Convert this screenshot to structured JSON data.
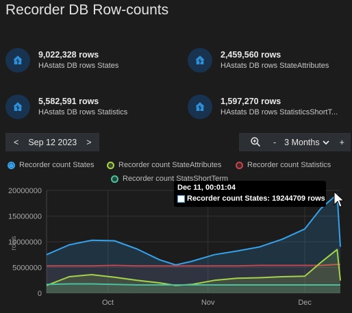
{
  "title": "Recorder DB Row-counts",
  "stats": [
    {
      "value": "9,022,328 rows",
      "label": "HAstats DB rows States"
    },
    {
      "value": "2,459,560 rows",
      "label": "HAstats DB rows StateAttributes"
    },
    {
      "value": "5,582,591 rows",
      "label": "HAstats DB rows Statistics"
    },
    {
      "value": "1,597,270 rows",
      "label": "HAstats DB rows StatisticsShortT..."
    }
  ],
  "date_nav": {
    "prev": "<",
    "date": "Sep 12 2023",
    "next": ">"
  },
  "zoom_nav": {
    "zoom_icon": "zoom-in-icon",
    "minus": "-",
    "period": "3 Months",
    "chevron": "chevron-down-icon",
    "plus": "+"
  },
  "colors": {
    "states": "#36a2eb",
    "state_attributes": "#a5d44a",
    "statistics": "#c0474f",
    "statistics_short_term": "#4bc0a0"
  },
  "tooltip": {
    "title": "Dec 11, 00:01:04",
    "row": "Recorder count States: 19244709 rows"
  },
  "chart_data": {
    "type": "area",
    "ylabel": "rows",
    "y_ticks": [
      "20000000",
      "15000000",
      "10000000",
      "5000000",
      "0"
    ],
    "x_ticks": [
      "Oct",
      "Nov",
      "Dec"
    ],
    "ylim": [
      0,
      20000000
    ],
    "grid": true,
    "legend_position": "top",
    "x_domain": [
      "2023-09-12",
      "2023-12-12"
    ],
    "x": [
      "2023-09-12",
      "2023-09-19",
      "2023-09-26",
      "2023-10-03",
      "2023-10-10",
      "2023-10-17",
      "2023-10-22",
      "2023-10-27",
      "2023-11-03",
      "2023-11-10",
      "2023-11-17",
      "2023-11-24",
      "2023-12-01",
      "2023-12-06",
      "2023-12-11",
      "2023-12-12"
    ],
    "series": [
      {
        "name": "Recorder count States",
        "values": [
          7500000,
          9400000,
          10300000,
          10200000,
          8600000,
          6500000,
          5500000,
          6200000,
          7500000,
          8200000,
          9000000,
          10500000,
          12500000,
          16500000,
          19244709,
          9022328
        ]
      },
      {
        "name": "Recorder count StateAttributes",
        "values": [
          1500000,
          3200000,
          3600000,
          3100000,
          2500000,
          2000000,
          1500000,
          1700000,
          2500000,
          2900000,
          3000000,
          3200000,
          3300000,
          6000000,
          8500000,
          2459560
        ]
      },
      {
        "name": "Recorder count Statistics",
        "values": [
          5300000,
          5300000,
          5300000,
          5400000,
          5300000,
          5300000,
          5300000,
          5300000,
          5300000,
          5300000,
          5400000,
          5400000,
          5400000,
          5400000,
          5600000,
          5582591
        ]
      },
      {
        "name": "Recorder count StatsShortTerm",
        "values": [
          1700000,
          1800000,
          1800000,
          1700000,
          1600000,
          1600000,
          1600000,
          1600000,
          1600000,
          1600000,
          1600000,
          1600000,
          1600000,
          1600000,
          1600000,
          1597270
        ]
      }
    ]
  }
}
